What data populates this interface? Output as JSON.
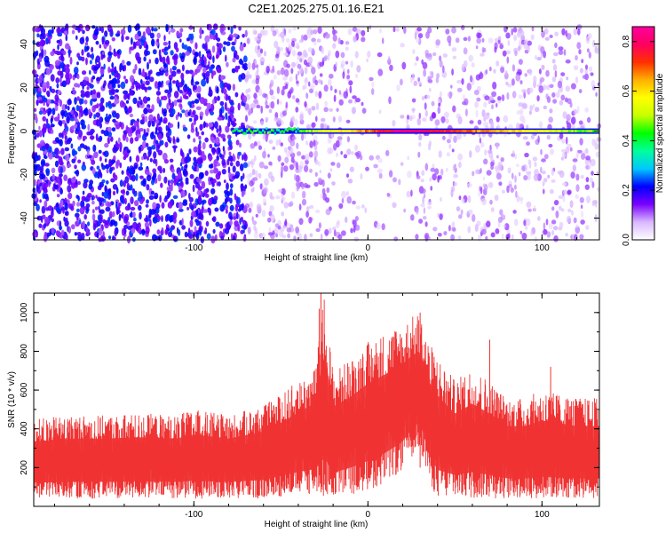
{
  "figure_title": "C2E1.2025.275.01.16.E21",
  "chart_data": [
    {
      "type": "heatmap",
      "xlabel": "Height of straight line (km)",
      "ylabel": "Frequency (Hz)",
      "xlim": [
        -192,
        133
      ],
      "ylim": [
        -50,
        48
      ],
      "xticks": [
        -100,
        0,
        100
      ],
      "xtick_labels": [
        "-100",
        "0",
        "100"
      ],
      "yticks": [
        -40,
        -20,
        0,
        20,
        40
      ],
      "ytick_labels": [
        "-40",
        "-20",
        "0",
        "20",
        "40"
      ],
      "colorbar": {
        "label": "Normalized spectral amplitude",
        "range": [
          0,
          0.86
        ],
        "ticks": [
          0.0,
          0.2,
          0.4,
          0.6,
          0.8
        ],
        "tick_labels": [
          "0.0",
          "0.2",
          "0.4",
          "0.6",
          "0.8"
        ],
        "colors": [
          "#ffffff",
          "#d9b8ff",
          "#7a00ff",
          "#0000ff",
          "#00c8ff",
          "#00ff9c",
          "#00ff00",
          "#c8ff00",
          "#ffff00",
          "#ffb000",
          "#ff3000",
          "#ff0060",
          "#ff00a0"
        ]
      },
      "noise_region_km": [
        -192,
        133
      ],
      "dense_noise_until_km": -70,
      "signal_line": {
        "freq_hz": 0,
        "start_km": -78,
        "end_km": 133,
        "peak_km": [
          15,
          30
        ],
        "peak_amplitude": 0.8
      }
    },
    {
      "type": "line",
      "xlabel": "Height of straight line (km)",
      "ylabel": "SNR (10 * v/v)",
      "xlim": [
        -192,
        133
      ],
      "ylim": [
        0,
        1100
      ],
      "xticks": [
        -100,
        0,
        100
      ],
      "xtick_labels": [
        "-100",
        "0",
        "100"
      ],
      "yticks": [
        200,
        400,
        600,
        800,
        1000
      ],
      "ytick_labels": [
        "200",
        "400",
        "600",
        "800",
        "1000"
      ],
      "color": "#f03232",
      "series": [
        {
          "name": "SNR",
          "envelope_x": [
            -192,
            -170,
            -150,
            -130,
            -110,
            -100,
            -80,
            -60,
            -50,
            -40,
            -30,
            -25,
            -20,
            -10,
            0,
            10,
            20,
            25,
            30,
            35,
            40,
            50,
            60,
            70,
            80,
            90,
            100,
            110,
            120,
            133
          ],
          "envelope_max": [
            450,
            470,
            470,
            480,
            470,
            500,
            470,
            520,
            580,
            650,
            720,
            1100,
            700,
            760,
            850,
            900,
            950,
            980,
            1000,
            850,
            780,
            650,
            720,
            650,
            560,
            560,
            600,
            580,
            560,
            560
          ],
          "envelope_min": [
            40,
            40,
            40,
            40,
            40,
            40,
            40,
            40,
            50,
            60,
            60,
            40,
            40,
            60,
            80,
            120,
            180,
            250,
            300,
            120,
            40,
            40,
            40,
            40,
            40,
            40,
            40,
            40,
            40,
            40
          ],
          "spikes": [
            {
              "x": -27,
              "y": 1100
            },
            {
              "x": -28,
              "y": 1020
            },
            {
              "x": 30,
              "y": 1000
            },
            {
              "x": 70,
              "y": 860
            },
            {
              "x": 105,
              "y": 720
            }
          ]
        }
      ]
    }
  ]
}
